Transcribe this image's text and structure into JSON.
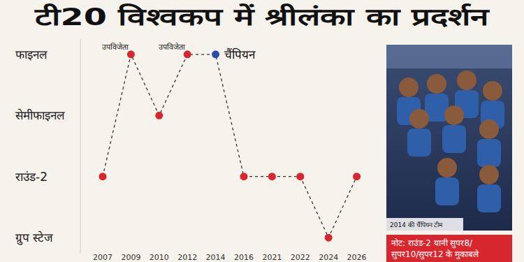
{
  "chart_data": {
    "type": "line",
    "title": "टी20 विश्वकप में श्रीलंका का प्रदर्शन",
    "categories": [
      "2007",
      "2009",
      "2010",
      "2012",
      "2014",
      "2016",
      "2021",
      "2022",
      "2024",
      "2026"
    ],
    "values": [
      2,
      4,
      3,
      4,
      4,
      2,
      2,
      2,
      1,
      2
    ],
    "color": "#d8262f",
    "colors": [
      "#d8262f",
      "#d8262f",
      "#d8262f",
      "#d8262f",
      "#2a4ea3",
      "#d8262f",
      "#d8262f",
      "#d8262f",
      "#d8262f",
      "#d8262f"
    ],
    "line_style": "dashed",
    "marker": "circle",
    "ylim": [
      0.75,
      4.25
    ],
    "yticks": [
      {
        "value": 1,
        "label": "ग्रुप स्टेज"
      },
      {
        "value": 2,
        "label": "राउंड-2"
      },
      {
        "value": 3,
        "label": "सेमीफाइनल"
      },
      {
        "value": 4,
        "label": "फाइनल"
      }
    ],
    "grid": false,
    "annotations": [
      {
        "x": "2009",
        "text": "उपविजेता"
      },
      {
        "x": "2012",
        "text": "उपविजेता"
      },
      {
        "x": "2014",
        "text": "चैंपियन"
      }
    ]
  },
  "photo_caption": "2014 की चैंपियन टीम",
  "note": [
    "नोट: राउंड-2 यानी सुपर8/",
    "सुपर10/सुपर12 के मुकाबले"
  ]
}
